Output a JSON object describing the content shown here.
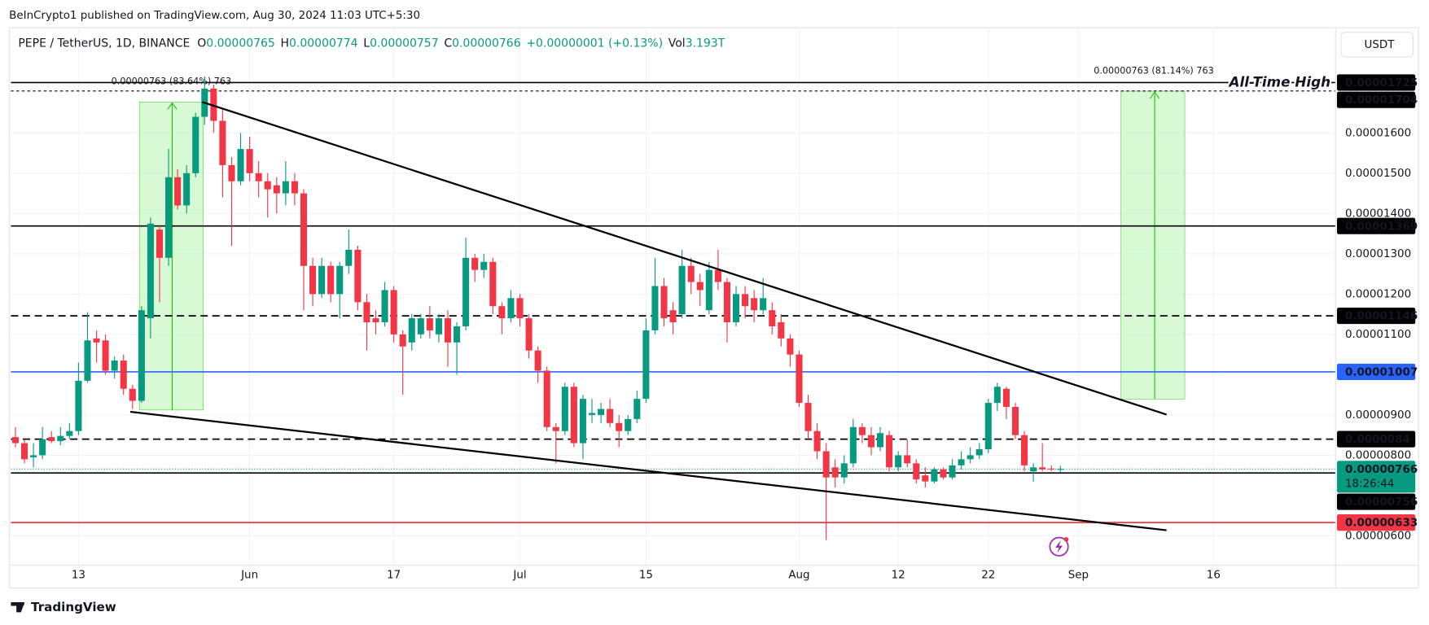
{
  "header": {
    "published": "BeInCrypto1 published on TradingView.com, Aug 30, 2024 11:03 UTC+5:30",
    "currency": "USDT",
    "footer": "TradingView"
  },
  "chart_data": {
    "type": "candlestick",
    "title": "PEPE / TetherUS, 1D, BINANCE",
    "legend": [
      {
        "label": "O",
        "value": "0.00000765"
      },
      {
        "label": "H",
        "value": "0.00000774"
      },
      {
        "label": "L",
        "value": "0.00000757"
      },
      {
        "label": "C",
        "value": "0.00000766"
      }
    ],
    "change": "+0.00000001 (+0.13%)",
    "volume": {
      "label": "Vol",
      "value": "3.193T"
    },
    "up_color": "#089981",
    "down_color": "#f23645",
    "open": [
      8.45e-06,
      8.3e-06,
      7.95e-06,
      8e-06,
      8.45e-06,
      8.35e-06,
      8.48e-06,
      8.6e-06,
      9.85e-06,
      1.09e-05,
      1.085e-05,
      1.01e-05,
      1.035e-05,
      9.65e-06,
      9.35e-06,
      1.14e-05,
      1.36e-05,
      1.29e-05,
      1.49e-05,
      1.42e-05,
      1.5e-05,
      1.64e-05,
      1.71e-05,
      1.63e-05,
      1.52e-05,
      1.48e-05,
      1.56e-05,
      1.5e-05,
      1.48e-05,
      1.47e-05,
      1.45e-05,
      1.48e-05,
      1.45e-05,
      1.27e-05,
      1.2e-05,
      1.27e-05,
      1.2e-05,
      1.27e-05,
      1.31e-05,
      1.18e-05,
      1.14e-05,
      1.13e-05,
      1.21e-05,
      1.1e-05,
      1.08e-05,
      1.1e-05,
      1.14e-05,
      1.1e-05,
      1.14e-05,
      1.08e-05,
      1.12e-05,
      1.29e-05,
      1.26e-05,
      1.28e-05,
      1.17e-05,
      1.14e-05,
      1.19e-05,
      1.14e-05,
      1.06e-05,
      1.01e-05,
      8.7e-06,
      8.6e-06,
      9.7e-06,
      8.3e-06,
      9e-06,
      9e-06,
      9.15e-06,
      8.8e-06,
      8.6e-06,
      8.9e-06,
      9.4e-06,
      1.11e-05,
      1.22e-05,
      1.16e-05,
      1.15e-05,
      1.27e-05,
      1.23e-05,
      1.16e-05,
      1.26e-05,
      1.23e-05,
      1.13e-05,
      1.2e-05,
      1.19e-05,
      1.16e-05,
      1.16e-05,
      1.13e-05,
      1.09e-05,
      1.05e-05,
      9.3e-06,
      8.6e-06,
      8.1e-06,
      7.7e-06,
      7.45e-06,
      7.8e-06,
      8.7e-06,
      8.5e-06,
      8.2e-06,
      8.5e-06,
      7.7e-06,
      8e-06,
      7.8e-06,
      7.5e-06,
      7.35e-06,
      7.65e-06,
      7.45e-06,
      7.75e-06,
      7.9e-06,
      8e-06,
      8.15e-06,
      9.3e-06,
      9.65e-06,
      9.2e-06,
      8.5e-06,
      7.6e-06,
      7.7e-06,
      7.67e-06,
      7.65e-06
    ],
    "high": [
      8.7e-06,
      8.4e-06,
      8.3e-06,
      8.7e-06,
      8.6e-06,
      8.7e-06,
      8.8e-06,
      1.03e-05,
      1.155e-05,
      1.11e-05,
      1.1e-05,
      1.045e-05,
      1.05e-05,
      9.75e-06,
      1.17e-05,
      1.39e-05,
      1.37e-05,
      1.56e-05,
      1.51e-05,
      1.52e-05,
      1.65e-05,
      1.74e-05,
      1.72e-05,
      1.66e-05,
      1.54e-05,
      1.6e-05,
      1.59e-05,
      1.53e-05,
      1.5e-05,
      1.49e-05,
      1.53e-05,
      1.5e-05,
      1.46e-05,
      1.29e-05,
      1.29e-05,
      1.28e-05,
      1.28e-05,
      1.36e-05,
      1.32e-05,
      1.2e-05,
      1.16e-05,
      1.23e-05,
      1.22e-05,
      1.11e-05,
      1.15e-05,
      1.15e-05,
      1.17e-05,
      1.15e-05,
      1.16e-05,
      1.13e-05,
      1.34e-05,
      1.3e-05,
      1.3e-05,
      1.29e-05,
      1.18e-05,
      1.21e-05,
      1.2e-05,
      1.15e-05,
      1.07e-05,
      1.02e-05,
      8.8e-06,
      9.8e-06,
      9.8e-06,
      9.5e-06,
      9.4e-06,
      9.3e-06,
      9.4e-06,
      9e-06,
      9e-06,
      9.6e-06,
      1.14e-05,
      1.29e-05,
      1.24e-05,
      1.18e-05,
      1.31e-05,
      1.29e-05,
      1.25e-05,
      1.28e-05,
      1.31e-05,
      1.24e-05,
      1.22e-05,
      1.22e-05,
      1.21e-05,
      1.24e-05,
      1.18e-05,
      1.15e-05,
      1.1e-05,
      1.06e-05,
      9.5e-06,
      8.8e-06,
      8.3e-06,
      7.9e-06,
      8e-06,
      8.9e-06,
      8.8e-06,
      8.7e-06,
      8.7e-06,
      8.6e-06,
      8.1e-06,
      8.4e-06,
      7.9e-06,
      7.7e-06,
      7.7e-06,
      7.7e-06,
      7.9e-06,
      8.1e-06,
      8.2e-06,
      8.3e-06,
      9.4e-06,
      9.8e-06,
      9.7e-06,
      9.3e-06,
      8.6e-06,
      7.8e-06,
      8.3e-06,
      7.75e-06,
      7.74e-06
    ],
    "low": [
      8.2e-06,
      7.8e-06,
      7.7e-06,
      7.9e-06,
      8.3e-06,
      8.25e-06,
      8.4e-06,
      8.5e-06,
      9.8e-06,
      1.03e-05,
      1e-05,
      9.9e-06,
      9.5e-06,
      9.15e-06,
      9.3e-06,
      1.09e-05,
      1.18e-05,
      1.27e-05,
      1.41e-05,
      1.4e-05,
      1.49e-05,
      1.62e-05,
      1.6e-05,
      1.44e-05,
      1.32e-05,
      1.47e-05,
      1.48e-05,
      1.44e-05,
      1.39e-05,
      1.4e-05,
      1.42e-05,
      1.42e-05,
      1.16e-05,
      1.17e-05,
      1.19e-05,
      1.18e-05,
      1.14e-05,
      1.25e-05,
      1.16e-05,
      1.06e-05,
      1.1e-05,
      1.12e-05,
      1.08e-05,
      9.5e-06,
      1.06e-05,
      1.09e-05,
      1.09e-05,
      1.08e-05,
      1.02e-05,
      1e-05,
      1.11e-05,
      1.23e-05,
      1.24e-05,
      1.15e-05,
      1.1e-05,
      1.13e-05,
      1.12e-05,
      1.04e-05,
      9.8e-06,
      8.6e-06,
      7.8e-06,
      8.5e-06,
      8.2e-06,
      7.9e-06,
      8.8e-06,
      8.8e-06,
      8.7e-06,
      8.2e-06,
      8.5e-06,
      8.8e-06,
      9.3e-06,
      1.1e-05,
      1.12e-05,
      1.1e-05,
      1.14e-05,
      1.2e-05,
      1.17e-05,
      1.15e-05,
      1.21e-05,
      1.08e-05,
      1.12e-05,
      1.14e-05,
      1.13e-05,
      1.15e-05,
      1.1e-05,
      1.07e-05,
      1.02e-05,
      9.2e-06,
      8.4e-06,
      7.9e-06,
      5.9e-06,
      7.2e-06,
      7.3e-06,
      7.7e-06,
      8.3e-06,
      8e-06,
      8.1e-06,
      7.6e-06,
      7.6e-06,
      7.7e-06,
      7.3e-06,
      7.2e-06,
      7.3e-06,
      7.4e-06,
      7.4e-06,
      7.65e-06,
      7.8e-06,
      7.9e-06,
      8.05e-06,
      9.1e-06,
      8.9e-06,
      8.4e-06,
      7.6e-06,
      7.35e-06,
      7.6e-06,
      7.6e-06,
      7.57e-06
    ],
    "close": [
      8.3e-06,
      7.9e-06,
      8e-06,
      8.4e-06,
      8.35e-06,
      8.48e-06,
      8.6e-06,
      9.85e-06,
      1.085e-05,
      1.08e-05,
      1.01e-05,
      1.035e-05,
      9.65e-06,
      9.35e-06,
      1.16e-05,
      1.375e-05,
      1.29e-05,
      1.49e-05,
      1.42e-05,
      1.5e-05,
      1.64e-05,
      1.71e-05,
      1.63e-05,
      1.52e-05,
      1.48e-05,
      1.56e-05,
      1.5e-05,
      1.48e-05,
      1.46e-05,
      1.45e-05,
      1.48e-05,
      1.45e-05,
      1.27e-05,
      1.2e-05,
      1.27e-05,
      1.2e-05,
      1.27e-05,
      1.31e-05,
      1.18e-05,
      1.13e-05,
      1.13e-05,
      1.21e-05,
      1.1e-05,
      1.07e-05,
      1.14e-05,
      1.14e-05,
      1.11e-05,
      1.14e-05,
      1.08e-05,
      1.12e-05,
      1.29e-05,
      1.26e-05,
      1.28e-05,
      1.17e-05,
      1.14e-05,
      1.19e-05,
      1.14e-05,
      1.06e-05,
      1.01e-05,
      8.7e-06,
      8.6e-06,
      9.7e-06,
      8.3e-06,
      9.4e-06,
      9.05e-06,
      9.15e-06,
      8.8e-06,
      8.6e-06,
      8.9e-06,
      9.4e-06,
      1.11e-05,
      1.22e-05,
      1.14e-05,
      1.13e-05,
      1.27e-05,
      1.23e-05,
      1.21e-05,
      1.26e-05,
      1.23e-05,
      1.13e-05,
      1.2e-05,
      1.17e-05,
      1.16e-05,
      1.19e-05,
      1.12e-05,
      1.09e-05,
      1.05e-05,
      9.3e-06,
      8.6e-06,
      8.1e-06,
      7.45e-06,
      7.45e-06,
      7.8e-06,
      8.7e-06,
      8.5e-06,
      8.2e-06,
      8.55e-06,
      7.7e-06,
      8e-06,
      7.8e-06,
      7.4e-06,
      7.35e-06,
      7.65e-06,
      7.45e-06,
      7.75e-06,
      7.9e-06,
      8e-06,
      8.15e-06,
      9.3e-06,
      9.7e-06,
      9.2e-06,
      8.5e-06,
      7.75e-06,
      7.7e-06,
      7.65e-06,
      7.65e-06,
      7.66e-06
    ],
    "xlim": [
      -0.5,
      146.5
    ],
    "xticks": [
      {
        "value": 7,
        "label": "13"
      },
      {
        "value": 26,
        "label": "Jun"
      },
      {
        "value": 42,
        "label": "17"
      },
      {
        "value": 56,
        "label": "Jul"
      },
      {
        "value": 70,
        "label": "15"
      },
      {
        "value": 87,
        "label": "Aug"
      },
      {
        "value": 98,
        "label": "12"
      },
      {
        "value": 108,
        "label": "22"
      },
      {
        "value": 118,
        "label": "Sep"
      },
      {
        "value": 133,
        "label": "16"
      }
    ],
    "ylim": [
      5.28e-06,
      1.862e-05
    ],
    "yticks": [
      {
        "value": 1.6e-05,
        "label": "0.00001600"
      },
      {
        "value": 1.5e-05,
        "label": "0.00001500"
      },
      {
        "value": 1.4e-05,
        "label": "0.00001400"
      },
      {
        "value": 1.3e-05,
        "label": "0.00001300"
      },
      {
        "value": 1.2e-05,
        "label": "0.00001200"
      },
      {
        "value": 1.1e-05,
        "label": "0.00001100"
      },
      {
        "value": 9e-06,
        "label": "0.00000900"
      },
      {
        "value": 8e-06,
        "label": "0.00000800"
      },
      {
        "value": 6e-06,
        "label": "0.00000600"
      }
    ],
    "grid": true,
    "levels": [
      {
        "value": 1.725e-05,
        "color": "#000000",
        "style": "solid",
        "note": "All-Time High"
      },
      {
        "value": 1.704e-05,
        "color": "#000000",
        "style": "dotted"
      },
      {
        "value": 1.369e-05,
        "color": "#000000",
        "style": "solid"
      },
      {
        "value": 1.146e-05,
        "color": "#000000",
        "style": "dashed"
      },
      {
        "value": 1.007e-05,
        "color": "#2962ff",
        "style": "solid"
      },
      {
        "value": 8.4e-06,
        "color": "#000000",
        "style": "dashed"
      },
      {
        "value": 7.56e-06,
        "color": "#000000",
        "style": "solid"
      },
      {
        "value": 6.33e-06,
        "color": "#f23645",
        "style": "solid"
      }
    ],
    "current_price": {
      "value": 7.66e-06,
      "countdown": "18:26:44",
      "color": "#089981"
    },
    "measures": [
      {
        "label": "0.00000763 (83.64%) 763"
      },
      {
        "label": "0.00000763 (81.14%) 763"
      }
    ]
  }
}
